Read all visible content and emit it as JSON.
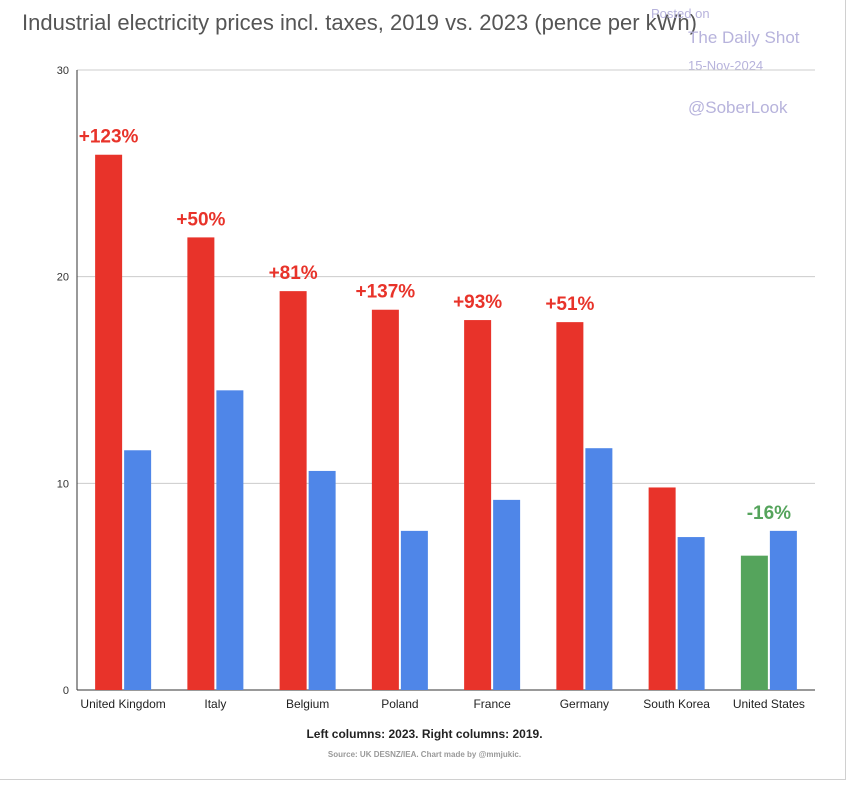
{
  "watermark": {
    "posted": "Posted on",
    "name": "The Daily Shot",
    "date": "15-Nov-2024",
    "handle": "@SoberLook"
  },
  "chart_data": {
    "type": "bar",
    "title": "Industrial electricity prices incl. taxes, 2019 vs. 2023 (pence per kWh)",
    "caption": "Left columns: 2023. Right columns: 2019.",
    "source": "Source: UK DESNZ/IEA. Chart made by @mmjukic.",
    "categories": [
      "United Kingdom",
      "Italy",
      "Belgium",
      "Poland",
      "France",
      "Germany",
      "South Korea",
      "United States"
    ],
    "series": [
      {
        "name": "2023",
        "values": [
          25.9,
          21.9,
          19.3,
          18.4,
          17.9,
          17.8,
          9.8,
          6.5
        ]
      },
      {
        "name": "2019",
        "values": [
          11.6,
          14.5,
          10.6,
          7.7,
          9.2,
          11.7,
          7.4,
          7.7
        ]
      }
    ],
    "bar_colors": {
      "2023": [
        "#e8332a",
        "#e8332a",
        "#e8332a",
        "#e8332a",
        "#e8332a",
        "#e8332a",
        "#e8332a",
        "#55a45c"
      ],
      "2019": "#4f86e8"
    },
    "annotations": [
      "+123%",
      "+50%",
      "+81%",
      "+137%",
      "+93%",
      "+51%",
      "",
      "-16%"
    ],
    "annotation_colors": [
      "#e8332a",
      "#e8332a",
      "#e8332a",
      "#e8332a",
      "#e8332a",
      "#e8332a",
      "#e8332a",
      "#55a45c"
    ],
    "yticks": [
      0,
      10,
      20,
      30
    ],
    "ylim": [
      0,
      30
    ],
    "xlabel": "",
    "ylabel": ""
  }
}
